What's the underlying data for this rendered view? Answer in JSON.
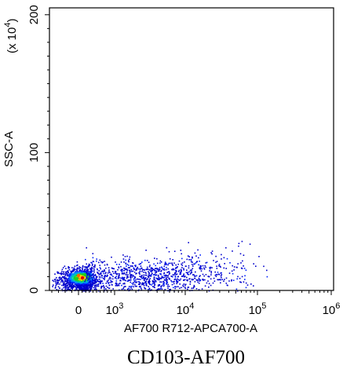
{
  "chart_data": {
    "type": "scatter",
    "subtype": "flow-cytometry density dot plot",
    "caption": "CD103-AF700",
    "xlabel": "AF700 R712-APCA700-A",
    "ylabel": "SSC-A",
    "ylabel_multiplier": {
      "base": "(x 10",
      "exp": "4",
      "close": ")"
    },
    "x_scale": "biexponential (linear near 0, log above 10^3)",
    "xlim": [
      -400,
      1000000
    ],
    "ylim": [
      0,
      205
    ],
    "grid": false,
    "legend": "none",
    "x_ticks": [
      {
        "value": 0,
        "base": "0",
        "exp": ""
      },
      {
        "value": 1000,
        "base": "10",
        "exp": "3"
      },
      {
        "value": 10000,
        "base": "10",
        "exp": "4"
      },
      {
        "value": 100000,
        "base": "10",
        "exp": "5"
      },
      {
        "value": 1000000,
        "base": "10",
        "exp": "6"
      }
    ],
    "y_ticks": [
      {
        "value": 0,
        "label": "0"
      },
      {
        "value": 100,
        "label": "100"
      },
      {
        "value": 200,
        "label": "200"
      }
    ],
    "density_regions": [
      {
        "x_center": 50,
        "y_center": 8,
        "x_spread": 180,
        "y_spread": 4,
        "count": 1400
      },
      {
        "x_center": 2500,
        "y_center": 10,
        "x_spread": 0.55,
        "y_spread": 6,
        "count": 900
      },
      {
        "x_center": 15000,
        "y_center": 16,
        "x_spread": 0.45,
        "y_spread": 8,
        "count": 160
      }
    ],
    "density_colors": [
      "#0000cc",
      "#0022ff",
      "#0088ff",
      "#00ccaa",
      "#22cc22",
      "#ffdd00",
      "#ff6600",
      "#dd0000"
    ],
    "max_point": {
      "x": 60000,
      "y": 36
    }
  }
}
